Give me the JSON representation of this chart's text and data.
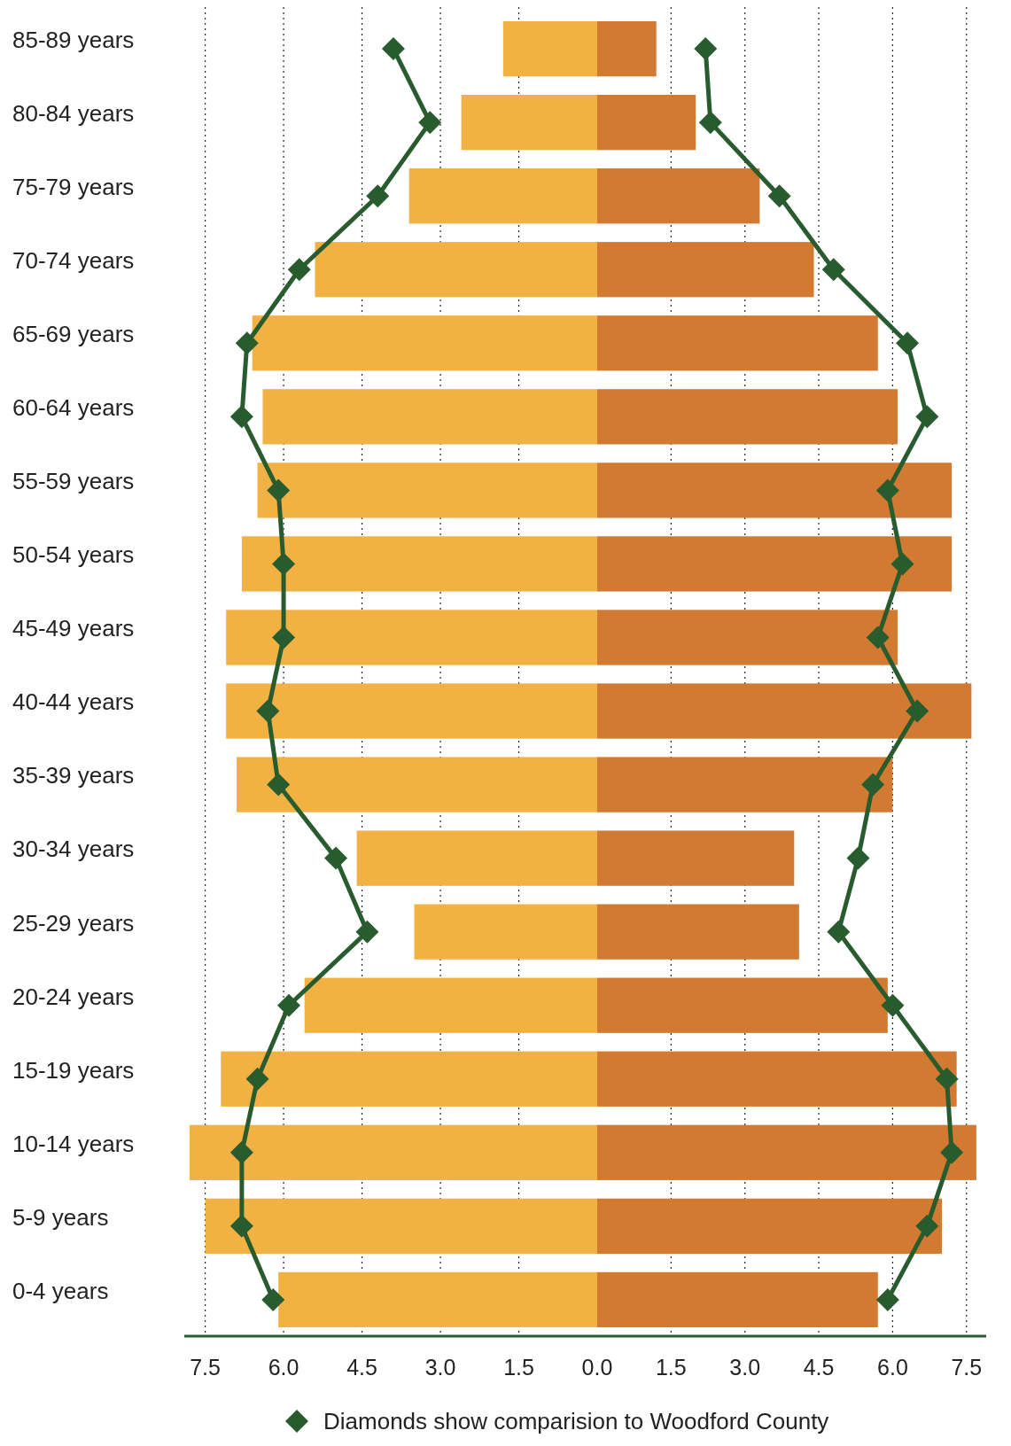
{
  "chart_data": [
    {
      "type": "bar",
      "orientation": "horizontal",
      "categories": [
        "85-89 years",
        "80-84 years",
        "75-79 years",
        "70-74 years",
        "65-69 years",
        "60-64 years",
        "55-59 years",
        "50-54 years",
        "45-49 years",
        "40-44 years",
        "35-39 years",
        "30-34 years",
        "25-29 years",
        "20-24 years",
        "15-19 years",
        "10-14 years",
        "5-9 years",
        "0-4 years"
      ],
      "series": [
        {
          "color": "#f2b143",
          "values": [
            1.8,
            2.6,
            3.6,
            5.4,
            6.6,
            6.4,
            6.5,
            6.8,
            7.1,
            7.1,
            6.9,
            4.6,
            3.5,
            5.6,
            7.2,
            7.8,
            7.5,
            6.1
          ]
        },
        {
          "type": "line",
          "color": "#285c2f",
          "marker": "diamond",
          "values": [
            3.9,
            3.2,
            4.2,
            5.7,
            6.7,
            6.8,
            6.1,
            6.0,
            6.0,
            6.3,
            6.1,
            5.0,
            4.4,
            5.9,
            6.5,
            6.8,
            6.8,
            6.2
          ]
        }
      ],
      "xlim": [
        7.9,
        0
      ],
      "xticks": [
        {
          "value": 7.5,
          "label": "7.5"
        },
        {
          "value": 6,
          "label": "6.0"
        },
        {
          "value": 4.5,
          "label": "4.5"
        },
        {
          "value": 3,
          "label": "3.0"
        },
        {
          "value": 1.5,
          "label": "1.5"
        },
        {
          "value": 0,
          "label": "0.0"
        }
      ],
      "grid": "x"
    },
    {
      "type": "bar",
      "orientation": "horizontal",
      "categories": [
        null,
        null,
        null,
        null,
        null,
        null,
        null,
        null,
        null,
        null,
        null,
        null,
        null,
        null,
        null,
        null,
        null,
        null
      ],
      "series": [
        {
          "color": "#d27a31",
          "values": [
            1.2,
            2.0,
            3.3,
            4.4,
            5.7,
            6.1,
            7.2,
            7.2,
            6.1,
            7.6,
            6.0,
            4.0,
            4.1,
            5.9,
            7.3,
            7.7,
            7.0,
            5.7
          ]
        },
        {
          "type": "line",
          "color": "#285c2f",
          "marker": "diamond",
          "name": "Diamonds show comparision to Woodford County",
          "values": [
            2.2,
            2.3,
            3.7,
            4.8,
            6.3,
            6.7,
            5.9,
            6.2,
            5.7,
            6.5,
            5.6,
            5.3,
            4.9,
            6.0,
            7.1,
            7.2,
            6.7,
            5.9
          ]
        }
      ],
      "xlim": [
        0,
        7.9
      ],
      "xticks": [
        {
          "value": 1.5,
          "label": "1.5"
        },
        {
          "value": 3,
          "label": "3.0"
        },
        {
          "value": 4.5,
          "label": "4.5"
        },
        {
          "value": 6,
          "label": "6.0"
        },
        {
          "value": 7.5,
          "label": "7.5"
        }
      ],
      "grid": "x",
      "legend": "bottom",
      "tick_labels": "x"
    }
  ]
}
